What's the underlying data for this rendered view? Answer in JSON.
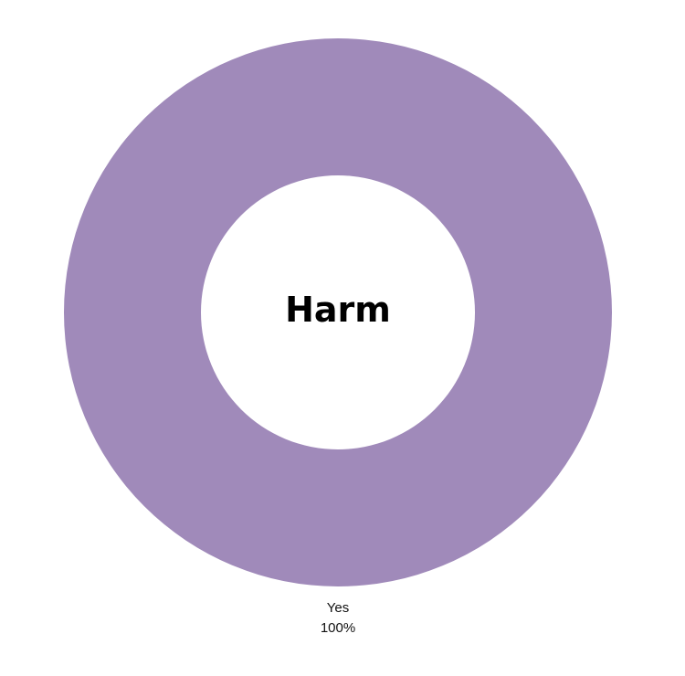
{
  "chart_data": {
    "type": "pie",
    "donut": true,
    "title": "Harm",
    "slices": [
      {
        "label": "Yes",
        "value": 100,
        "value_label": "100%",
        "color": "#a08aba"
      }
    ]
  }
}
